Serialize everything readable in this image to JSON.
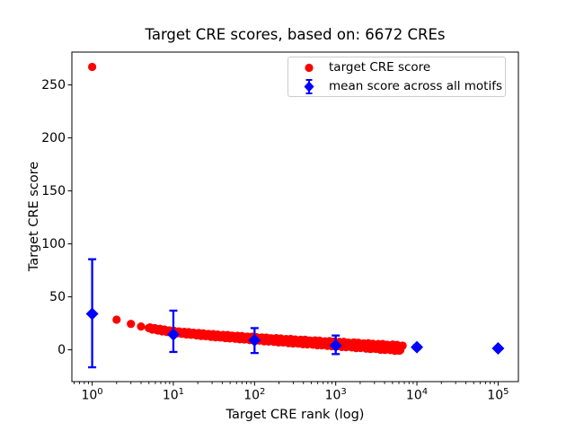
{
  "chart_data": {
    "type": "scatter",
    "title": "Target CRE scores, based on: 6672 CREs",
    "xlabel": "Target CRE rank (log)",
    "ylabel": "Target CRE score",
    "x_scale": "log",
    "xlim_log10": [
      -0.25,
      5.25
    ],
    "ylim": [
      -30,
      281
    ],
    "x_ticks": [
      {
        "value": 1,
        "base": "10",
        "exp": "0"
      },
      {
        "value": 10,
        "base": "10",
        "exp": "1"
      },
      {
        "value": 100,
        "base": "10",
        "exp": "2"
      },
      {
        "value": 1000,
        "base": "10",
        "exp": "3"
      },
      {
        "value": 10000,
        "base": "10",
        "exp": "4"
      },
      {
        "value": 100000,
        "base": "10",
        "exp": "5"
      }
    ],
    "y_ticks": [
      0,
      50,
      100,
      150,
      200,
      250
    ],
    "minor_x_ticks": true,
    "grid": false,
    "series": [
      {
        "name": "target CRE score",
        "color": "#ff0000",
        "marker": "circle",
        "n_points": 6672,
        "points": [
          [
            1,
            267
          ],
          [
            2,
            28.5
          ],
          [
            3,
            24.5
          ],
          [
            4,
            22
          ],
          [
            5,
            20.5
          ]
        ],
        "band": {
          "from_rank": 5,
          "to_rank": 6672,
          "anchors": [
            [
              5,
              20.5
            ],
            [
              10,
              16.8
            ],
            [
              30,
              13.5
            ],
            [
              100,
              10.5
            ],
            [
              300,
              8
            ],
            [
              1000,
              5.5
            ],
            [
              3000,
              3.2
            ],
            [
              6672,
              1.5
            ]
          ],
          "spread": 3
        }
      },
      {
        "name": "mean score across all motifs",
        "color": "#0000ff",
        "marker": "diamond",
        "points": [
          {
            "rank": 1,
            "mean": 34,
            "lo": -16.5,
            "hi": 85.5
          },
          {
            "rank": 10,
            "mean": 14.5,
            "lo": -2,
            "hi": 37
          },
          {
            "rank": 100,
            "mean": 9,
            "lo": -3,
            "hi": 20.5
          },
          {
            "rank": 1000,
            "mean": 4,
            "lo": -4,
            "hi": 13.5
          },
          {
            "rank": 10000,
            "mean": 2.5,
            "lo": 0.8,
            "hi": 4.2
          },
          {
            "rank": 100000,
            "mean": 1.4,
            "lo": 0.4,
            "hi": 2.4
          }
        ]
      }
    ],
    "legend": {
      "position": "upper right",
      "entries": [
        {
          "label": "target CRE score",
          "marker": "circle",
          "color": "#ff0000"
        },
        {
          "label": "mean score across all motifs",
          "marker": "diamond-errorbar",
          "color": "#0000ff"
        }
      ]
    }
  }
}
